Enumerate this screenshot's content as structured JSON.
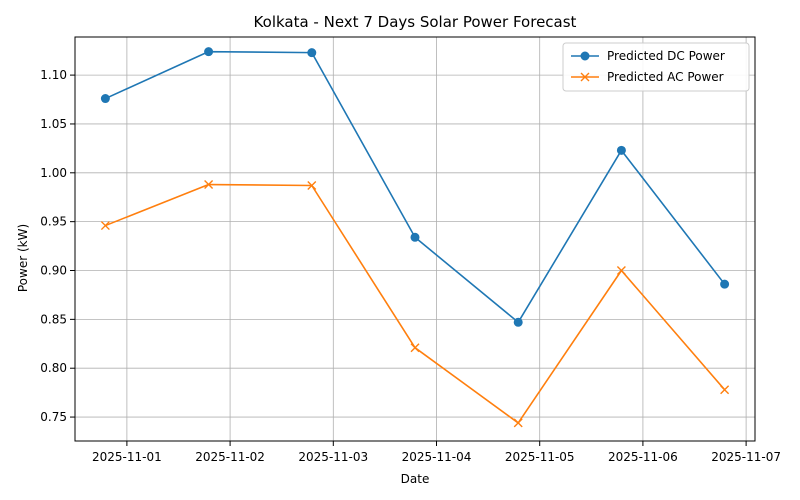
{
  "chart_data": {
    "type": "line",
    "title": "Kolkata - Next 7 Days Solar Power Forecast",
    "xlabel": "Date",
    "ylabel": "Power (kW)",
    "x": [
      "2025-10-31T19:00",
      "2025-11-01T19:00",
      "2025-11-02T19:00",
      "2025-11-03T19:00",
      "2025-11-04T19:00",
      "2025-11-05T19:00",
      "2025-11-06T19:00"
    ],
    "xticks": [
      "2025-11-01",
      "2025-11-02",
      "2025-11-03",
      "2025-11-04",
      "2025-11-05",
      "2025-11-06",
      "2025-11-07"
    ],
    "xlim": [
      "2025-10-31T11:56",
      "2025-11-07T02:04"
    ],
    "ylim": [
      0.7255,
      1.139
    ],
    "yticks": [
      0.75,
      0.8,
      0.85,
      0.9,
      0.95,
      1.0,
      1.05,
      1.1
    ],
    "ytick_labels": [
      "0.75",
      "0.80",
      "0.85",
      "0.90",
      "0.95",
      "1.00",
      "1.05",
      "1.10"
    ],
    "grid": true,
    "legend_position": "upper-right",
    "series": [
      {
        "name": "Predicted DC Power",
        "color": "#1f77b4",
        "marker": "circle",
        "values": [
          1.076,
          1.124,
          1.123,
          0.934,
          0.847,
          1.023,
          0.886
        ]
      },
      {
        "name": "Predicted AC Power",
        "color": "#ff7f0e",
        "marker": "x",
        "values": [
          0.946,
          0.988,
          0.987,
          0.821,
          0.744,
          0.9,
          0.778
        ]
      }
    ]
  }
}
